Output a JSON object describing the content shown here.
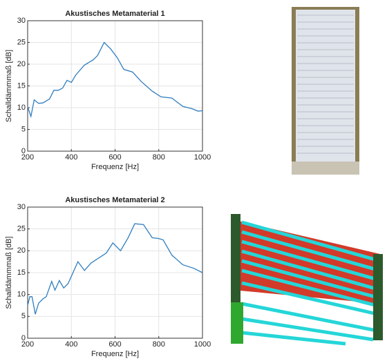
{
  "chart_data": [
    {
      "type": "line",
      "title": "Akustisches Metamaterial 1",
      "x_label": "Frequenz [Hz]",
      "y_label": "Schalldämmmaß [dB]",
      "x": [
        200,
        215,
        230,
        250,
        270,
        300,
        320,
        340,
        360,
        380,
        400,
        420,
        460,
        500,
        520,
        550,
        580,
        610,
        640,
        680,
        720,
        770,
        810,
        860,
        910,
        950,
        980,
        1000
      ],
      "series": [
        {
          "color": "#2f7dbf",
          "values": [
            10.2,
            8,
            11.8,
            11,
            11.1,
            12,
            14,
            14,
            14.5,
            16.3,
            15.8,
            17.5,
            19.8,
            21,
            22,
            25,
            23.5,
            21.5,
            18.8,
            18.2,
            16,
            13.8,
            12.5,
            12.2,
            10.3,
            9.8,
            9.2,
            9.3
          ]
        }
      ],
      "xlim": [
        200,
        1000
      ],
      "xticks": [
        200,
        400,
        600,
        800,
        1000
      ],
      "ylim": [
        0,
        30
      ],
      "yticks": [
        0,
        5,
        10,
        15,
        20,
        25,
        30
      ],
      "grid": true
    },
    {
      "type": "line",
      "title": "Akustisches Metamaterial 2",
      "x_label": "Frequenz [Hz]",
      "y_label": "Schalldämmmaß [dB]",
      "x": [
        200,
        210,
        220,
        235,
        250,
        270,
        285,
        310,
        325,
        345,
        365,
        385,
        430,
        460,
        490,
        530,
        560,
        590,
        625,
        660,
        690,
        730,
        770,
        800,
        820,
        860,
        910,
        960,
        1000
      ],
      "series": [
        {
          "color": "#2f7dbf",
          "values": [
            7.5,
            9.5,
            9.5,
            5.5,
            8,
            9,
            9.5,
            13,
            11,
            13.2,
            11.5,
            12.5,
            17.5,
            15.5,
            17.2,
            18.5,
            19.5,
            21.8,
            20,
            23,
            26.2,
            26,
            23,
            22.8,
            22.5,
            19,
            16.8,
            16,
            15
          ]
        }
      ],
      "xlim": [
        200,
        1000
      ],
      "xticks": [
        200,
        400,
        600,
        800,
        1000
      ],
      "ylim": [
        0,
        30
      ],
      "yticks": [
        0,
        5,
        10,
        15,
        20,
        25,
        30
      ],
      "grid": true
    }
  ]
}
